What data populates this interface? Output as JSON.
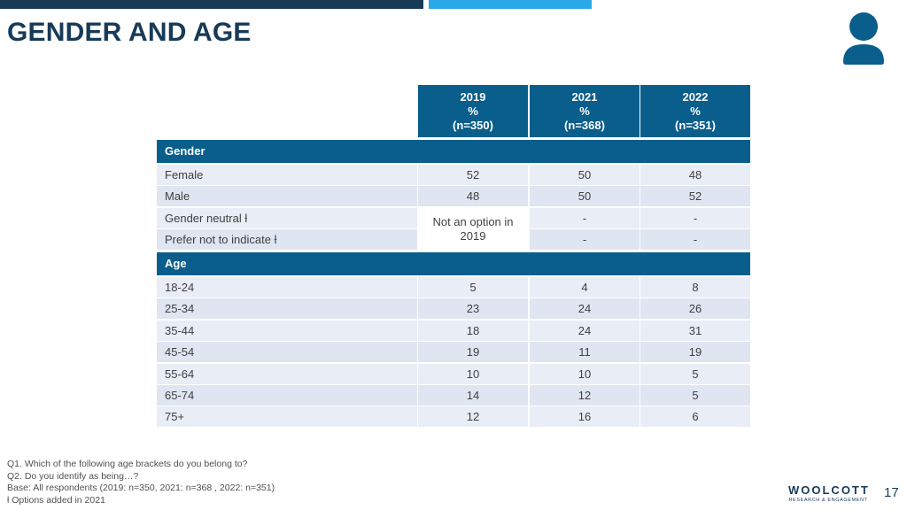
{
  "page": {
    "title": "GENDER AND AGE",
    "page_number": "17"
  },
  "table": {
    "columns": [
      {
        "year": "2019",
        "unit": "%",
        "n": "(n=350)"
      },
      {
        "year": "2021",
        "unit": "%",
        "n": "(n=368)"
      },
      {
        "year": "2022",
        "unit": "%",
        "n": "(n=351)"
      }
    ],
    "gender_section": "Gender",
    "gender_rows": [
      {
        "label": "Female",
        "v2019": "52",
        "v2021": "50",
        "v2022": "48"
      },
      {
        "label": "Male",
        "v2019": "48",
        "v2021": "50",
        "v2022": "52"
      },
      {
        "label": "Gender neutral ƚ",
        "v2021": "-",
        "v2022": "-"
      },
      {
        "label": "Prefer not to indicate ƚ",
        "v2021": "-",
        "v2022": "-"
      }
    ],
    "merged_note": "Not an option in 2019",
    "age_section": "Age",
    "age_rows": [
      {
        "label": "18-24",
        "v2019": "5",
        "v2021": "4",
        "v2022": "8"
      },
      {
        "label": "25-34",
        "v2019": "23",
        "v2021": "24",
        "v2022": "26"
      },
      {
        "label": "35-44",
        "v2019": "18",
        "v2021": "24",
        "v2022": "31"
      },
      {
        "label": "45-54",
        "v2019": "19",
        "v2021": "11",
        "v2022": "19"
      },
      {
        "label": "55-64",
        "v2019": "10",
        "v2021": "10",
        "v2022": "5"
      },
      {
        "label": "65-74",
        "v2019": "14",
        "v2021": "12",
        "v2022": "5"
      },
      {
        "label": "75+",
        "v2019": "12",
        "v2021": "16",
        "v2022": "6"
      }
    ]
  },
  "footnotes": [
    "Q1. Which of the following age brackets do you belong to?",
    "Q2. Do you identify as being…?",
    "Base: All respondents (2019: n=350, 2021: n=368 , 2022: n=351)",
    "ƚ Options added in 2021"
  ],
  "logo": {
    "name": "WOOLCOTT",
    "tagline": "RESEARCH & ENGAGEMENT"
  },
  "colors": {
    "header_blue": "#0a5e8c",
    "title_navy": "#173a57",
    "accent_blue": "#2aa8e8",
    "row_light": "#e8edf6"
  },
  "icons": {
    "person": "person-icon"
  }
}
